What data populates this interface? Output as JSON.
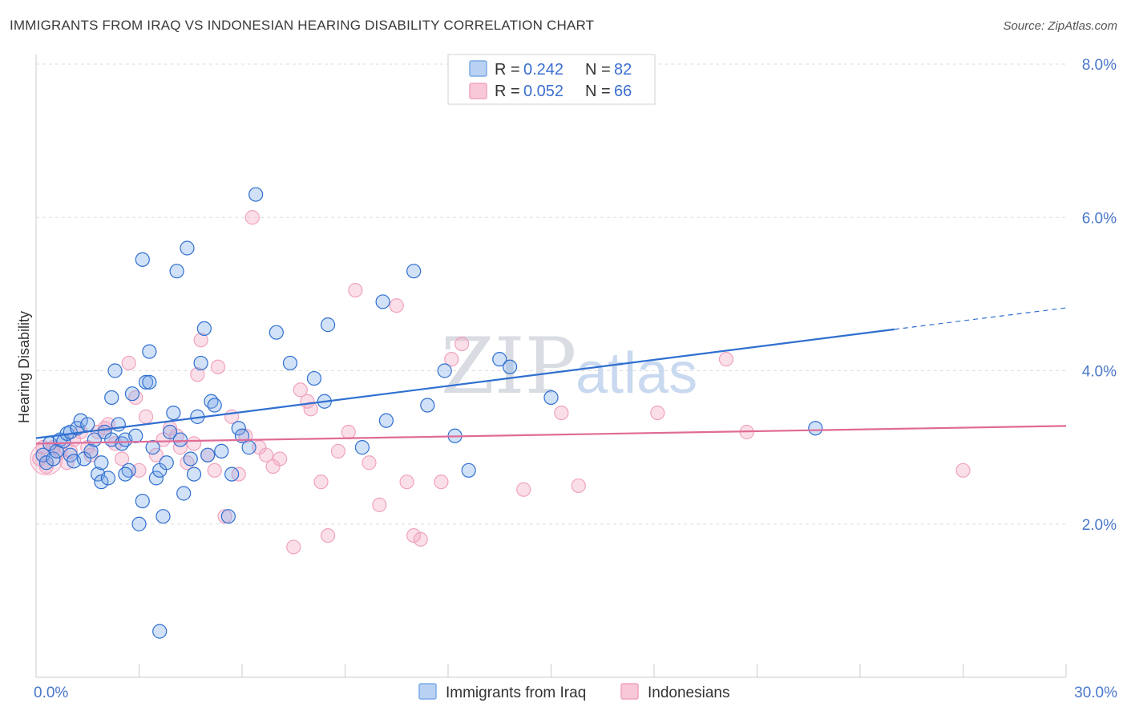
{
  "title": "IMMIGRANTS FROM IRAQ VS INDONESIAN HEARING DISABILITY CORRELATION CHART",
  "source": "Source: ZipAtlas.com",
  "colors": {
    "blue": "#7aaae8",
    "blue_line": "#2f6fd0",
    "pink": "#f0a3bf",
    "pink_line": "#e06a96",
    "grid": "#dddddd"
  },
  "watermark": {
    "zip": "ZIP",
    "atlas": "atlas"
  },
  "legend": {
    "rows": [
      {
        "r_label": "R =",
        "r_value": "0.242",
        "n_label": "N =",
        "n_value": "82"
      },
      {
        "r_label": "R =",
        "r_value": "0.052",
        "n_label": "N =",
        "n_value": "66"
      }
    ]
  },
  "chart_data": {
    "type": "scatter",
    "title": "IMMIGRANTS FROM IRAQ VS INDONESIAN HEARING DISABILITY CORRELATION CHART",
    "xlabel": "",
    "ylabel": "Hearing Disability",
    "xlim": [
      0,
      30
    ],
    "ylim": [
      0,
      8
    ],
    "x_tick_labels": [
      "0.0%",
      "30.0%"
    ],
    "y_ticks": [
      2,
      4,
      6,
      8
    ],
    "y_tick_labels": [
      "2.0%",
      "4.0%",
      "6.0%",
      "8.0%"
    ],
    "series": [
      {
        "name": "Immigrants from Iraq",
        "color": "blue",
        "trend": {
          "x": [
            0,
            25
          ],
          "y": [
            3.12,
            4.54
          ],
          "dashed_to": [
            30,
            4.82
          ]
        },
        "points": [
          [
            0.2,
            2.9
          ],
          [
            0.3,
            2.8
          ],
          [
            0.4,
            3.05
          ],
          [
            0.5,
            2.85
          ],
          [
            0.6,
            2.95
          ],
          [
            0.7,
            3.1
          ],
          [
            0.8,
            3.08
          ],
          [
            0.9,
            3.18
          ],
          [
            1.0,
            3.2
          ],
          [
            1.0,
            2.9
          ],
          [
            1.1,
            2.82
          ],
          [
            1.2,
            3.25
          ],
          [
            1.3,
            3.35
          ],
          [
            1.4,
            2.85
          ],
          [
            1.5,
            3.3
          ],
          [
            1.6,
            2.95
          ],
          [
            1.7,
            3.1
          ],
          [
            1.8,
            2.65
          ],
          [
            1.9,
            2.8
          ],
          [
            1.9,
            2.55
          ],
          [
            2.0,
            3.2
          ],
          [
            2.1,
            2.6
          ],
          [
            2.2,
            3.1
          ],
          [
            2.2,
            3.65
          ],
          [
            2.3,
            4.0
          ],
          [
            2.4,
            3.3
          ],
          [
            2.5,
            3.05
          ],
          [
            2.6,
            3.1
          ],
          [
            2.7,
            2.7
          ],
          [
            2.8,
            3.7
          ],
          [
            2.9,
            3.15
          ],
          [
            2.6,
            2.65
          ],
          [
            3.0,
            2.0
          ],
          [
            3.1,
            2.3
          ],
          [
            3.2,
            3.85
          ],
          [
            3.3,
            3.85
          ],
          [
            3.3,
            4.25
          ],
          [
            3.4,
            3.0
          ],
          [
            3.5,
            2.6
          ],
          [
            3.6,
            2.7
          ],
          [
            3.7,
            2.1
          ],
          [
            3.8,
            2.8
          ],
          [
            3.9,
            3.2
          ],
          [
            4.0,
            3.45
          ],
          [
            4.1,
            5.3
          ],
          [
            4.2,
            3.1
          ],
          [
            4.3,
            2.4
          ],
          [
            4.4,
            5.6
          ],
          [
            4.5,
            2.85
          ],
          [
            4.6,
            2.65
          ],
          [
            4.7,
            3.4
          ],
          [
            4.8,
            4.1
          ],
          [
            4.9,
            4.55
          ],
          [
            5.0,
            2.9
          ],
          [
            5.1,
            3.6
          ],
          [
            5.2,
            3.55
          ],
          [
            5.4,
            2.95
          ],
          [
            5.6,
            2.1
          ],
          [
            5.7,
            2.65
          ],
          [
            5.9,
            3.25
          ],
          [
            6.0,
            3.15
          ],
          [
            6.2,
            3.0
          ],
          [
            6.4,
            6.3
          ],
          [
            3.1,
            5.45
          ],
          [
            7.0,
            4.5
          ],
          [
            7.4,
            4.1
          ],
          [
            8.1,
            3.9
          ],
          [
            8.4,
            3.6
          ],
          [
            8.5,
            4.6
          ],
          [
            9.5,
            3.0
          ],
          [
            10.1,
            4.9
          ],
          [
            10.2,
            3.35
          ],
          [
            11.0,
            5.3
          ],
          [
            11.4,
            3.55
          ],
          [
            11.9,
            4.0
          ],
          [
            12.2,
            3.15
          ],
          [
            12.6,
            2.7
          ],
          [
            13.5,
            4.15
          ],
          [
            13.8,
            4.05
          ],
          [
            15.0,
            3.65
          ],
          [
            3.6,
            0.6
          ],
          [
            22.7,
            3.25
          ]
        ]
      },
      {
        "name": "Indonesians",
        "color": "pink",
        "trend": {
          "x": [
            0,
            30
          ],
          "y": [
            3.05,
            3.28
          ]
        },
        "points": [
          [
            0.1,
            2.85
          ],
          [
            0.3,
            2.75
          ],
          [
            0.5,
            3.0
          ],
          [
            0.7,
            2.95
          ],
          [
            0.9,
            2.8
          ],
          [
            1.1,
            3.1
          ],
          [
            1.3,
            3.2
          ],
          [
            1.5,
            3.0
          ],
          [
            1.6,
            2.9
          ],
          [
            1.8,
            3.2
          ],
          [
            2.0,
            3.25
          ],
          [
            2.1,
            3.3
          ],
          [
            2.3,
            3.05
          ],
          [
            2.5,
            2.85
          ],
          [
            2.7,
            4.1
          ],
          [
            2.9,
            3.65
          ],
          [
            3.0,
            2.7
          ],
          [
            3.2,
            3.4
          ],
          [
            3.5,
            2.9
          ],
          [
            3.7,
            3.1
          ],
          [
            3.9,
            3.25
          ],
          [
            4.1,
            3.15
          ],
          [
            4.2,
            3.0
          ],
          [
            4.4,
            2.8
          ],
          [
            4.6,
            3.05
          ],
          [
            4.7,
            3.95
          ],
          [
            4.8,
            4.4
          ],
          [
            5.0,
            2.9
          ],
          [
            5.2,
            2.7
          ],
          [
            5.3,
            4.05
          ],
          [
            5.5,
            2.1
          ],
          [
            5.7,
            3.4
          ],
          [
            5.9,
            2.65
          ],
          [
            6.1,
            3.15
          ],
          [
            6.3,
            6.0
          ],
          [
            6.5,
            3.0
          ],
          [
            6.7,
            2.9
          ],
          [
            6.9,
            2.75
          ],
          [
            7.1,
            2.85
          ],
          [
            7.5,
            1.7
          ],
          [
            7.7,
            3.75
          ],
          [
            7.9,
            3.6
          ],
          [
            8.0,
            3.5
          ],
          [
            8.3,
            2.55
          ],
          [
            8.5,
            1.85
          ],
          [
            8.8,
            2.95
          ],
          [
            9.1,
            3.2
          ],
          [
            9.3,
            5.05
          ],
          [
            9.7,
            2.8
          ],
          [
            10.0,
            2.25
          ],
          [
            10.5,
            4.85
          ],
          [
            10.8,
            2.55
          ],
          [
            11.0,
            1.85
          ],
          [
            11.2,
            1.8
          ],
          [
            11.8,
            2.55
          ],
          [
            12.1,
            4.15
          ],
          [
            12.4,
            4.35
          ],
          [
            14.2,
            2.45
          ],
          [
            15.3,
            3.45
          ],
          [
            15.8,
            2.5
          ],
          [
            18.1,
            3.45
          ],
          [
            20.1,
            4.15
          ],
          [
            20.7,
            3.2
          ],
          [
            27.0,
            2.7
          ],
          [
            0.2,
            3.0
          ],
          [
            1.0,
            2.95
          ]
        ]
      }
    ]
  }
}
